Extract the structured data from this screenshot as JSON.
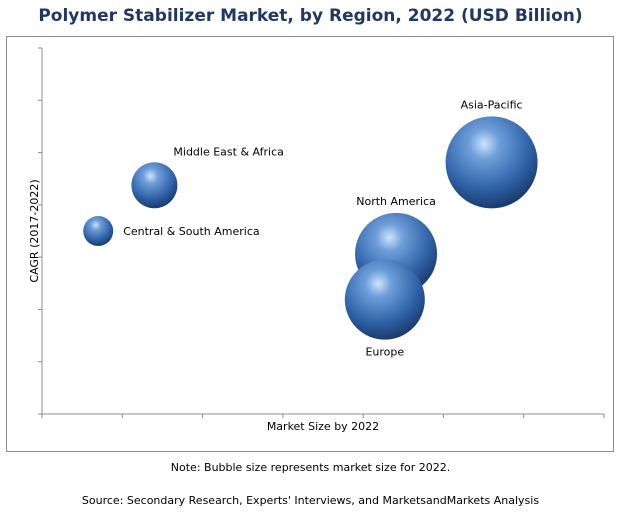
{
  "chart_data": {
    "type": "scatter",
    "title": "Polymer Stabilizer Market, by Region, 2022 (USD Billion)",
    "xlabel": "Market Size by 2022",
    "ylabel": "CAGR (2017-2022)",
    "grid": false,
    "series": [
      {
        "name": "Asia-Pacific",
        "x": 8.0,
        "y": 5.5,
        "size": 46
      },
      {
        "name": "Middle East & Africa",
        "x": 2.0,
        "y": 5.0,
        "size": 23
      },
      {
        "name": "Central & South America",
        "x": 1.0,
        "y": 4.0,
        "size": 15
      },
      {
        "name": "North America",
        "x": 6.3,
        "y": 3.5,
        "size": 41
      },
      {
        "name": "Europe",
        "x": 6.1,
        "y": 2.5,
        "size": 40
      }
    ],
    "xlim": [
      0,
      10
    ],
    "ylim": [
      0,
      8
    ]
  },
  "footer": {
    "note": "Note: Bubble size represents market size for 2022.",
    "source": "Source: Secondary Research, Experts' Interviews, and MarketsandMarkets Analysis"
  }
}
